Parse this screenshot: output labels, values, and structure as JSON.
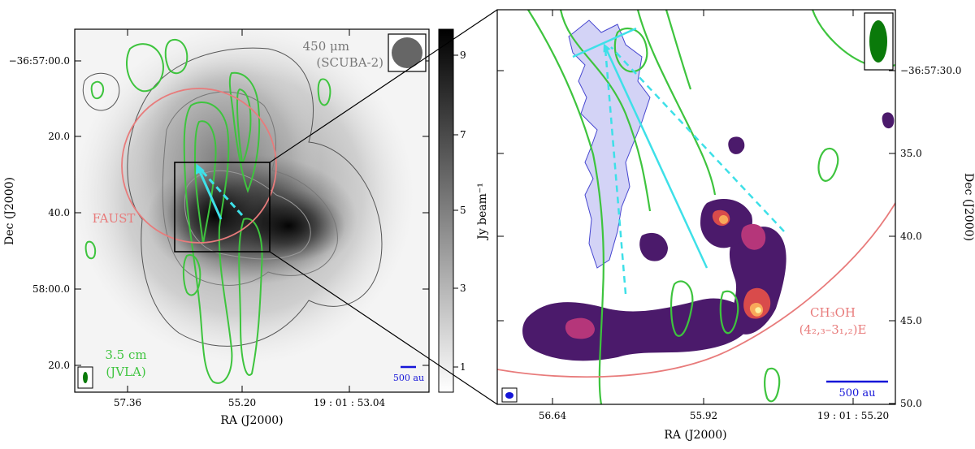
{
  "left_panel": {
    "xlabel": "RA (J2000)",
    "ylabel": "Dec (J2000)",
    "xticks": [
      "57.36",
      "55.20",
      "19 : 01 : 53.04"
    ],
    "yticks": [
      "−36:57:00.0",
      "20.0",
      "40.0",
      "58:00.0",
      "20.0"
    ],
    "continuum_label_line1": "450 μm",
    "continuum_label_line2": "(SCUBA-2)",
    "radio_label_line1": "3.5 cm",
    "radio_label_line2": "(JVLA)",
    "fov_label": "FAUST",
    "scalebar_label": "500 au"
  },
  "colorbar": {
    "label": "Jy beam⁻¹",
    "ticks": [
      "9",
      "7",
      "5",
      "3",
      "1"
    ]
  },
  "right_panel": {
    "xlabel": "RA (J2000)",
    "ylabel": "Dec (J2000)",
    "xticks": [
      "56.64",
      "55.92",
      "19 : 01 : 55.20"
    ],
    "yticks": [
      "−36:57:30.0",
      "35.0",
      "40.0",
      "45.0",
      "50.0"
    ],
    "line_label_line1": "CH₃OH",
    "line_label_line2": "(4₂,₃–3₁,₂)E",
    "scalebar_label": "500 au"
  },
  "colors": {
    "radio_contour": "#3ec43e",
    "faust_circle": "#e87b7b",
    "outflow_arrow": "#3ee0e8",
    "scalebar": "#1515d8",
    "beam_green": "#0a7a0a",
    "beam_grey": "#666666",
    "lobe_fill": "#c8c8f4",
    "lobe_edge": "#4646d0"
  }
}
